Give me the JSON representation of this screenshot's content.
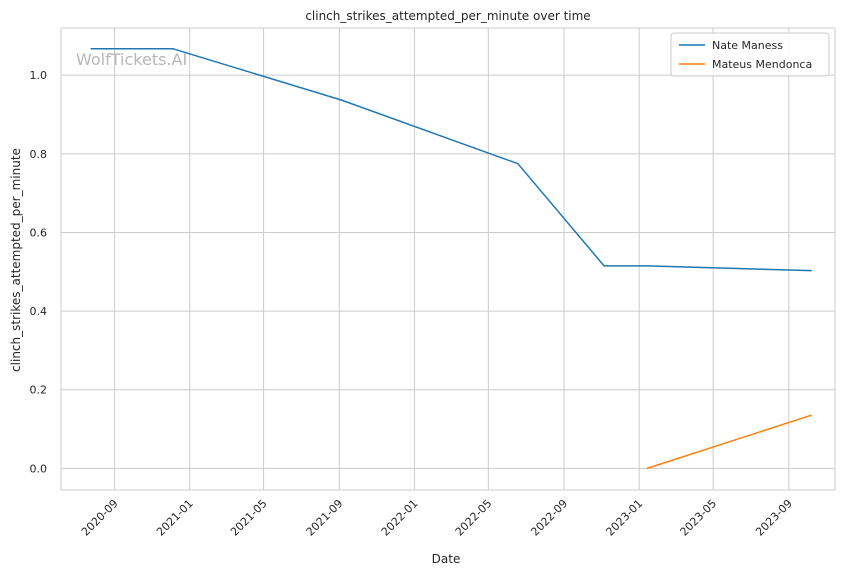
{
  "chart_data": {
    "type": "line",
    "title": "clinch_strikes_attempted_per_minute over time",
    "xlabel": "Date",
    "ylabel": "clinch_strikes_attempted_per_minute",
    "watermark": "WolfTickets.AI",
    "grid": true,
    "legend_position": "top-right",
    "xlim": [
      "2020-06-06",
      "2023-11-15"
    ],
    "ylim": [
      -0.055,
      1.12
    ],
    "x_ticks": [
      "2020-09",
      "2021-01",
      "2021-05",
      "2021-09",
      "2022-01",
      "2022-05",
      "2022-09",
      "2023-01",
      "2023-05",
      "2023-09"
    ],
    "y_ticks": [
      "0.0",
      "0.2",
      "0.4",
      "0.6",
      "0.8",
      "1.0"
    ],
    "series": [
      {
        "name": "Nate Maness",
        "color": "#1f77b4",
        "points": [
          {
            "x": "2020-07-25",
            "y": 1.067
          },
          {
            "x": "2020-12-05",
            "y": 1.067
          },
          {
            "x": "2021-09-04",
            "y": 0.937
          },
          {
            "x": "2022-06-18",
            "y": 0.775
          },
          {
            "x": "2022-11-05",
            "y": 0.515
          },
          {
            "x": "2023-01-14",
            "y": 0.515
          },
          {
            "x": "2023-10-07",
            "y": 0.503
          }
        ]
      },
      {
        "name": "Mateus Mendonca",
        "color": "#ff7f0e",
        "points": [
          {
            "x": "2023-01-14",
            "y": 0.0
          },
          {
            "x": "2023-10-07",
            "y": 0.135
          }
        ]
      }
    ]
  }
}
